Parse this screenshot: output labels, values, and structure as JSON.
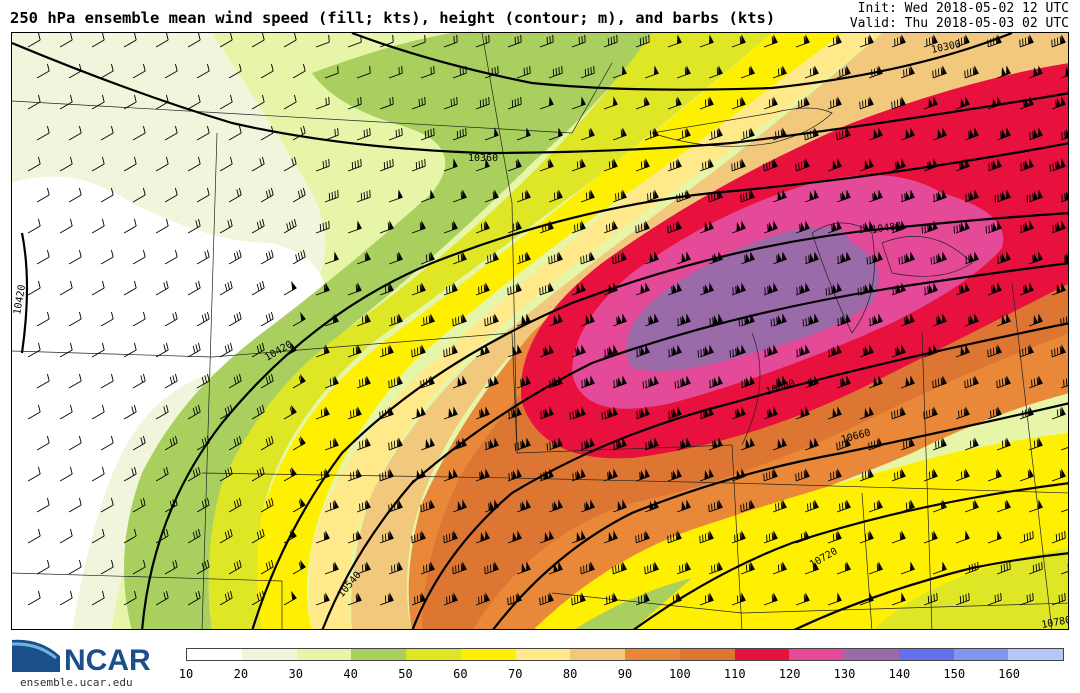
{
  "header": {
    "title": "250 hPa ensemble mean wind speed (fill; kts), height (contour; m), and barbs (kts)",
    "init": "Init: Wed 2018-05-02 12 UTC",
    "valid": "Valid: Thu 2018-05-03 02 UTC"
  },
  "logo": {
    "text": "NCAR",
    "url": "ensemble.ucar.edu",
    "icon": "ncar-swoosh-icon"
  },
  "colorbar": {
    "ticks": [
      "10",
      "20",
      "30",
      "40",
      "50",
      "60",
      "70",
      "80",
      "90",
      "100",
      "110",
      "120",
      "130",
      "140",
      "150",
      "160"
    ],
    "colors": [
      "#ffffff",
      "#f0f5db",
      "#e6f5a8",
      "#a9cf5f",
      "#dfe625",
      "#ffef00",
      "#ffe98a",
      "#f2c87c",
      "#e88838",
      "#dd7633",
      "#e8103c",
      "#e54a98",
      "#9b6aa8",
      "#6670ee",
      "#7f97f0",
      "#b3c8f8"
    ]
  },
  "map": {
    "height_contour_labels": [
      "10300",
      "10360",
      "10420",
      "10420",
      "10480",
      "10540",
      "10600",
      "10660",
      "10720",
      "10780"
    ],
    "fill_colors": {
      "w10": "#ffffff",
      "w20": "#f0f5db",
      "w30": "#e6f5a8",
      "w40": "#a9cf5f",
      "w50": "#dfe625",
      "w60": "#ffef00",
      "w70": "#ffe98a",
      "w80": "#f2c87c",
      "w90": "#e88838",
      "w100": "#dd7633",
      "w110": "#e8103c",
      "w120": "#e54a98",
      "w130": "#9b6aa8"
    },
    "barb_direction": "southwesterly to westerly"
  }
}
